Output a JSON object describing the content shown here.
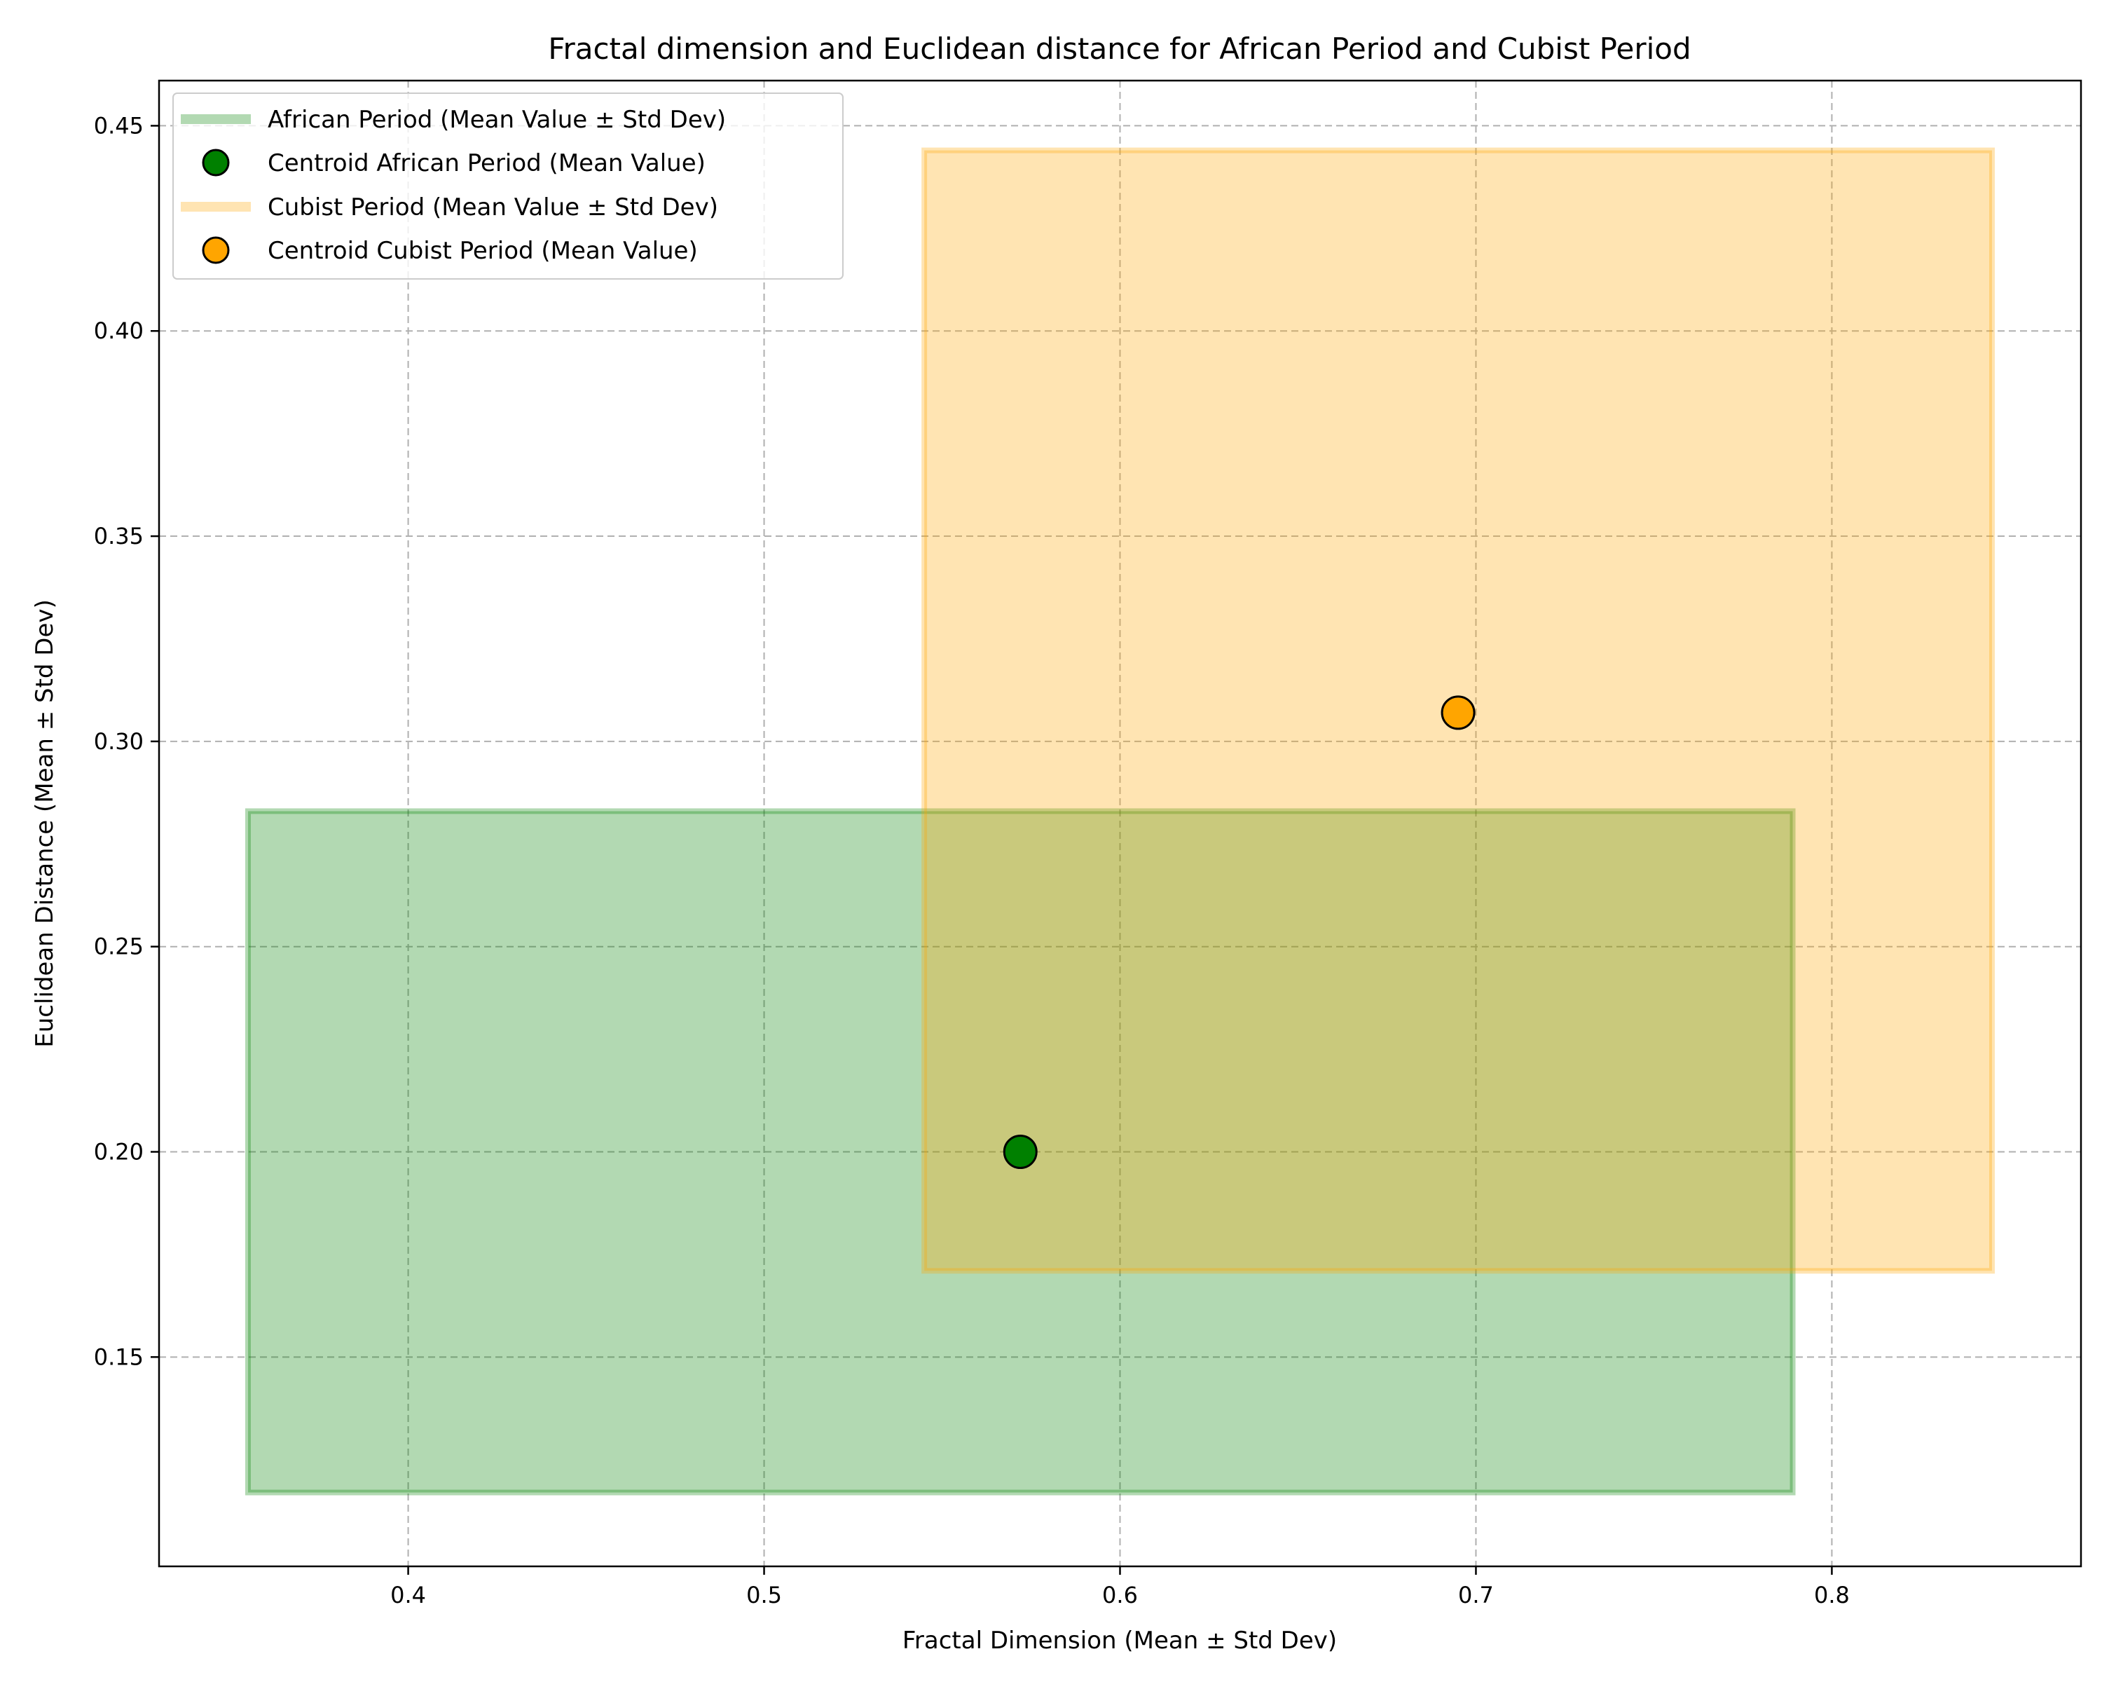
{
  "chart_data": {
    "type": "scatter",
    "title": "Fractal dimension and Euclidean distance for African Period and Cubist Period",
    "xlabel": "Fractal Dimension (Mean ± Std Dev)",
    "ylabel": "Euclidean Distance (Mean ± Std Dev)",
    "xlim": [
      0.33,
      0.87
    ],
    "ylim": [
      0.099,
      0.461
    ],
    "xticks": [
      0.4,
      0.5,
      0.6,
      0.7,
      0.8
    ],
    "xtick_labels": [
      "0.4",
      "0.5",
      "0.6",
      "0.7",
      "0.8"
    ],
    "yticks": [
      0.15,
      0.2,
      0.25,
      0.3,
      0.35,
      0.4,
      0.45
    ],
    "ytick_labels": [
      "0.15",
      "0.20",
      "0.25",
      "0.30",
      "0.35",
      "0.40",
      "0.45"
    ],
    "grid": true,
    "legend_position": "top-left",
    "series": [
      {
        "name": "African Period",
        "color": "#008000",
        "centroid": {
          "x": 0.572,
          "y": 0.2
        },
        "x_range": [
          0.355,
          0.789
        ],
        "y_range": [
          0.117,
          0.283
        ],
        "box_legend": "African Period (Mean Value ± Std Dev)",
        "centroid_legend": "Centroid African Period (Mean Value)"
      },
      {
        "name": "Cubist Period",
        "color": "#ffa500",
        "centroid": {
          "x": 0.695,
          "y": 0.307
        },
        "x_range": [
          0.545,
          0.845
        ],
        "y_range": [
          0.171,
          0.444
        ],
        "box_legend": "Cubist Period (Mean Value ± Std Dev)",
        "centroid_legend": "Centroid Cubist Period (Mean Value)"
      }
    ]
  }
}
